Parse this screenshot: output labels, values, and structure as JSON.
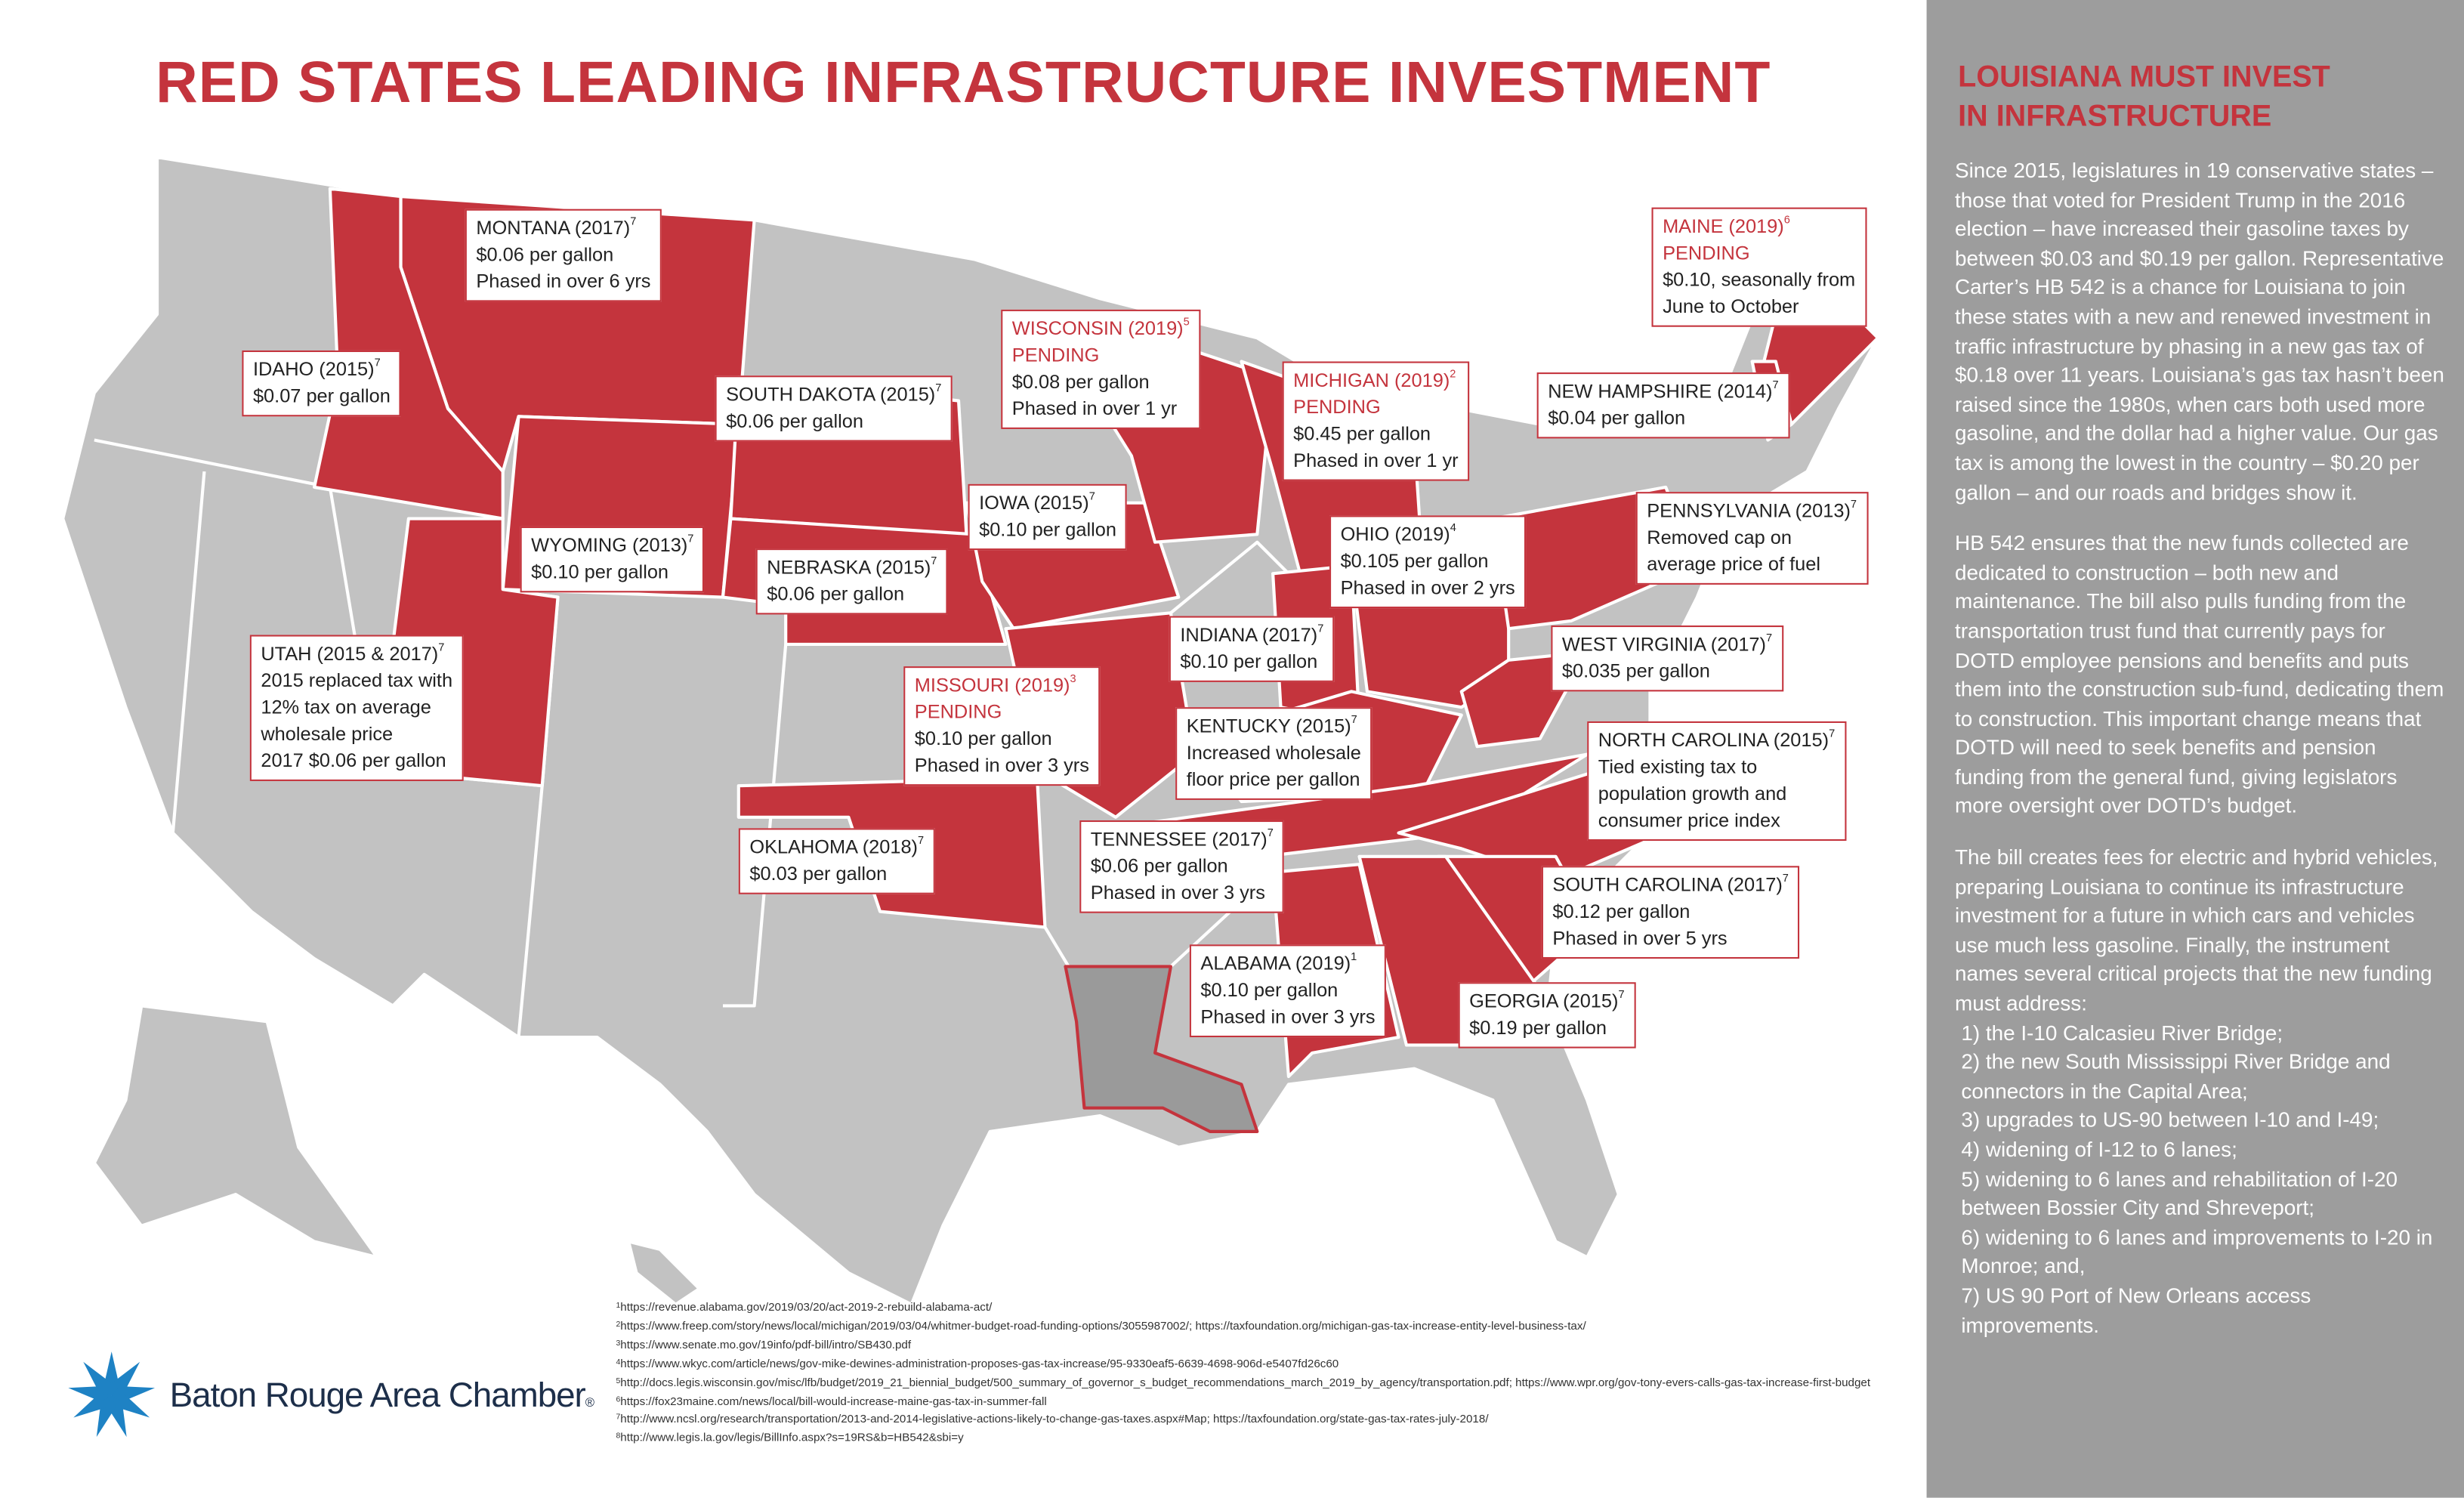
{
  "title": "RED STATES LEADING INFRASTRUCTURE INVESTMENT",
  "colors": {
    "accent": "#c4343d",
    "state_gray": "#c2c2c2",
    "sidebar": "#9d9d9d",
    "louisiana": "#9a9a9a"
  },
  "callouts": [
    {
      "state": "MONTANA (2017)",
      "sup": "7",
      "pending": "",
      "lines": [
        "$0.06 per gallon",
        "Phased in over 6 yrs"
      ]
    },
    {
      "state": "IDAHO (2015)",
      "sup": "7",
      "pending": "",
      "lines": [
        "$0.07 per gallon"
      ]
    },
    {
      "state": "WYOMING (2013)",
      "sup": "7",
      "pending": "",
      "lines": [
        "$0.10 per gallon"
      ]
    },
    {
      "state": "UTAH (2015 & 2017)",
      "sup": "7",
      "pending": "",
      "lines": [
        "2015 replaced tax with",
        "12% tax on average",
        "wholesale price",
        "2017 $0.06 per gallon"
      ]
    },
    {
      "state": "SOUTH DAKOTA (2015)",
      "sup": "7",
      "pending": "",
      "lines": [
        "$0.06 per gallon"
      ]
    },
    {
      "state": "NEBRASKA (2015)",
      "sup": "7",
      "pending": "",
      "lines": [
        "$0.06 per gallon"
      ]
    },
    {
      "state": "WISCONSIN (2019)",
      "sup": "5",
      "pending": "PENDING",
      "lines": [
        "$0.08 per gallon",
        "Phased in over 1 yr"
      ]
    },
    {
      "state": "IOWA (2015)",
      "sup": "7",
      "pending": "",
      "lines": [
        "$0.10 per gallon"
      ]
    },
    {
      "state": "MISSOURI (2019)",
      "sup": "3",
      "pending": "PENDING",
      "lines": [
        "$0.10 per gallon",
        "Phased in over 3 yrs"
      ]
    },
    {
      "state": "OKLAHOMA (2018)",
      "sup": "7",
      "pending": "",
      "lines": [
        "$0.03 per gallon"
      ]
    },
    {
      "state": "MICHIGAN (2019)",
      "sup": "2",
      "pending": "PENDING",
      "lines": [
        "$0.45 per gallon",
        "Phased in over 1 yr"
      ]
    },
    {
      "state": "INDIANA (2017)",
      "sup": "7",
      "pending": "",
      "lines": [
        "$0.10 per gallon"
      ]
    },
    {
      "state": "OHIO (2019)",
      "sup": "4",
      "pending": "",
      "lines": [
        "$0.105 per gallon",
        "Phased in over 2 yrs"
      ]
    },
    {
      "state": "KENTUCKY (2015)",
      "sup": "7",
      "pending": "",
      "lines": [
        "Increased wholesale",
        "floor price per gallon"
      ]
    },
    {
      "state": "TENNESSEE (2017)",
      "sup": "7",
      "pending": "",
      "lines": [
        "$0.06 per gallon",
        "Phased in over 3 yrs"
      ]
    },
    {
      "state": "ALABAMA (2019)",
      "sup": "1",
      "pending": "",
      "lines": [
        "$0.10 per gallon",
        "Phased in over 3 yrs"
      ]
    },
    {
      "state": "GEORGIA (2015)",
      "sup": "7",
      "pending": "",
      "lines": [
        "$0.19 per gallon"
      ]
    },
    {
      "state": "SOUTH CAROLINA (2017)",
      "sup": "7",
      "pending": "",
      "lines": [
        "$0.12 per gallon",
        "Phased in over 5 yrs"
      ]
    },
    {
      "state": "NORTH CAROLINA (2015)",
      "sup": "7",
      "pending": "",
      "lines": [
        "Tied existing tax to",
        "population growth and",
        "consumer price index"
      ]
    },
    {
      "state": "WEST VIRGINIA (2017)",
      "sup": "7",
      "pending": "",
      "lines": [
        "$0.035 per gallon"
      ]
    },
    {
      "state": "PENNSYLVANIA (2013)",
      "sup": "7",
      "pending": "",
      "lines": [
        "Removed cap on",
        "average price of fuel"
      ]
    },
    {
      "state": "NEW HAMPSHIRE  (2014)",
      "sup": "7",
      "pending": "",
      "lines": [
        "$0.04 per gallon"
      ]
    },
    {
      "state": "MAINE (2019)",
      "sup": "6",
      "pending": "PENDING",
      "lines": [
        "$0.10, seasonally from",
        "June to October"
      ]
    }
  ],
  "footnotes": [
    {
      "sup": "1",
      "text": "https://revenue.alabama.gov/2019/03/20/act-2019-2-rebuild-alabama-act/"
    },
    {
      "sup": "2",
      "text": "https://www.freep.com/story/news/local/michigan/2019/03/04/whitmer-budget-road-funding-options/3055987002/; https://taxfoundation.org/michigan-gas-tax-increase-entity-level-business-tax/"
    },
    {
      "sup": "3",
      "text": "https://www.senate.mo.gov/19info/pdf-bill/intro/SB430.pdf"
    },
    {
      "sup": "4",
      "text": "https://www.wkyc.com/article/news/gov-mike-dewines-administration-proposes-gas-tax-increase/95-9330eaf5-6639-4698-906d-e5407fd26c60"
    },
    {
      "sup": "5",
      "text": "http://docs.legis.wisconsin.gov/misc/lfb/budget/2019_21_biennial_budget/500_summary_of_governor_s_budget_recommendations_march_2019_by_agency/transportation.pdf; https://www.wpr.org/gov-tony-evers-calls-gas-tax-increase-first-budget"
    },
    {
      "sup": "6",
      "text": "https://fox23maine.com/news/local/bill-would-increase-maine-gas-tax-in-summer-fall"
    },
    {
      "sup": "7",
      "text": "http://www.ncsl.org/research/transportation/2013-and-2014-legislative-actions-likely-to-change-gas-taxes.aspx#Map; https://taxfoundation.org/state-gas-tax-rates-july-2018/"
    },
    {
      "sup": "8",
      "text": "http://www.legis.la.gov/legis/BillInfo.aspx?s=19RS&b=HB542&sbi=y"
    }
  ],
  "logo": {
    "name": "Baton Rouge Area Chamber",
    "mark": "®"
  },
  "sidebar": {
    "title_line1": "LOUISIANA MUST INVEST",
    "title_line2": "IN INFRASTRUCTURE",
    "p1": "Since 2015, legislatures in 19 conservative states – those that voted for President Trump in the 2016 election – have increased their gasoline taxes by between $0.03 and $0.19 per gallon. Representative Carter’s HB 542 is a chance for Louisiana to join these states with a new and renewed investment in traffic infrastructure by phasing in a new gas tax of $0.18 over 11 years. Louisiana’s gas tax hasn’t been raised since the 1980s, when cars both used more gasoline, and the dollar had a higher value. Our gas tax is among the lowest in the country – $0.20 per gallon – and our roads and bridges show it.",
    "p2": "HB 542 ensures that the new funds collected are dedicated to construction – both new and maintenance. The bill also pulls funding from the transportation trust fund that currently pays for DOTD employee pensions and benefits and puts them into the construction sub-fund, dedicating them to construction. This important change means that DOTD will need to seek benefits and pension funding from the general fund, giving legislators more oversight over DOTD’s budget.",
    "p3": "The bill creates fees for electric and hybrid vehicles, preparing Louisiana to continue its infrastructure investment for a future in which cars and vehicles use much less gasoline. Finally, the instrument names several critical projects that the new funding must address:",
    "projects": [
      "1) the I-10 Calcasieu River Bridge;",
      "2) the new South Mississippi River Bridge and connectors in the Capital Area;",
      "3) upgrades to US-90 between I-10 and I-49;",
      "4) widening of I-12 to 6 lanes;",
      "5) widening to 6 lanes and rehabilitation of I-20 between Bossier City and Shreveport;",
      "6) widening to 6 lanes and improvements to I-20 in Monroe; and,",
      " 7) US 90 Port of New Orleans access improvements."
    ]
  }
}
